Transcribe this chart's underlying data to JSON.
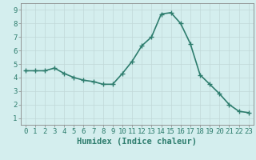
{
  "x": [
    0,
    1,
    2,
    3,
    4,
    5,
    6,
    7,
    8,
    9,
    10,
    11,
    12,
    13,
    14,
    15,
    16,
    17,
    18,
    19,
    20,
    21,
    22,
    23
  ],
  "y": [
    4.5,
    4.5,
    4.5,
    4.7,
    4.3,
    4.0,
    3.8,
    3.7,
    3.5,
    3.5,
    4.3,
    5.2,
    6.35,
    7.0,
    8.7,
    8.8,
    8.0,
    6.5,
    4.2,
    3.5,
    2.8,
    2.0,
    1.5,
    1.4
  ],
  "line_color": "#2e7d6e",
  "marker": "+",
  "marker_size": 4,
  "line_width": 1.2,
  "xlabel": "Humidex (Indice chaleur)",
  "xlim": [
    -0.5,
    23.5
  ],
  "ylim": [
    0.5,
    9.5
  ],
  "yticks": [
    1,
    2,
    3,
    4,
    5,
    6,
    7,
    8,
    9
  ],
  "xticks": [
    0,
    1,
    2,
    3,
    4,
    5,
    6,
    7,
    8,
    9,
    10,
    11,
    12,
    13,
    14,
    15,
    16,
    17,
    18,
    19,
    20,
    21,
    22,
    23
  ],
  "bg_color": "#d4eeee",
  "grid_color_major": "#c0d8d8",
  "grid_color_minor": "#d0e6e6",
  "tick_label_fontsize": 6.5,
  "xlabel_fontsize": 7.5,
  "spine_color": "#888888",
  "marker_edge_width": 1.0
}
